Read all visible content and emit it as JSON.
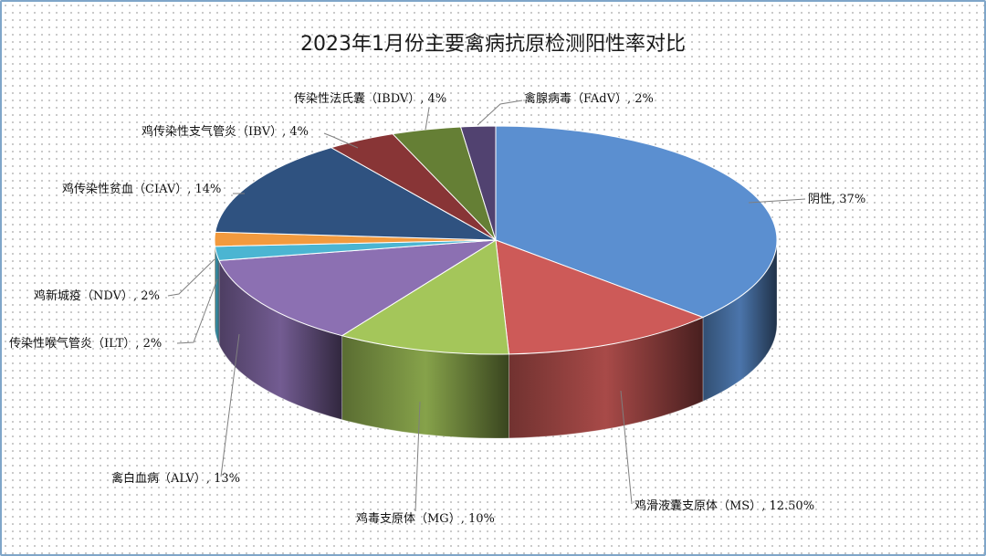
{
  "chart_data": {
    "type": "pie",
    "title": "2023年1月份主要禽病抗原检测阳性率对比",
    "slices": [
      {
        "label": "阴性",
        "value_label": "37%",
        "value": 37,
        "color": "#5b8fd0"
      },
      {
        "label": "鸡滑液囊支原体（MS）",
        "value_label": "12.50%",
        "value": 12.5,
        "color": "#cd5a58"
      },
      {
        "label": "鸡毒支原体（MG）",
        "value_label": "10%",
        "value": 10,
        "color": "#a4c65a"
      },
      {
        "label": "禽白血病（ALV）",
        "value_label": "13%",
        "value": 13,
        "color": "#8c70b2"
      },
      {
        "label": "传染性喉气管炎（ILT）",
        "value_label": "2%",
        "value": 2,
        "color": "#4bb5d2"
      },
      {
        "label": "鸡新城疫（NDV）",
        "value_label": "2%",
        "value": 2,
        "color": "#f29a3e"
      },
      {
        "label": "鸡传染性贫血（CIAV）",
        "value_label": "14%",
        "value": 14,
        "color": "#2f5280"
      },
      {
        "label": "鸡传染性支气管炎（IBV）",
        "value_label": "4%",
        "value": 4,
        "color": "#883536"
      },
      {
        "label": "传染性法氏囊（IBDV）",
        "value_label": "4%",
        "value": 4,
        "color": "#657f35"
      },
      {
        "label": "禽腺病毒（FAdV）",
        "value_label": "2%",
        "value": 2,
        "color": "#514270"
      }
    ],
    "start_angle_deg": -90,
    "direction": "clockwise",
    "perspective": "3d-tilted",
    "legend": "none",
    "data_labels": "outside-with-leader-lines"
  }
}
